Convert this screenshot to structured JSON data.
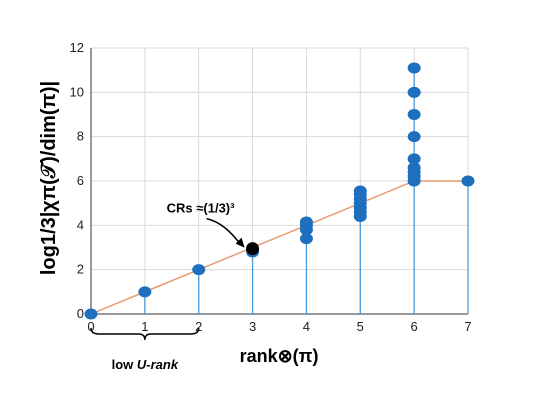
{
  "chart_data": {
    "type": "scatter",
    "xlabel": "rank⊗(π)",
    "ylabel": "log1/3|χπ(𝒯)/dim(π)|",
    "xlim": [
      0,
      7
    ],
    "ylim": [
      0,
      12
    ],
    "x_ticks": [
      "0",
      "1",
      "2",
      "3",
      "4",
      "5",
      "6",
      "7"
    ],
    "y_ticks": [
      "0",
      "2",
      "4",
      "6",
      "8",
      "10",
      "12"
    ],
    "grid": true,
    "points": [
      {
        "x": 0,
        "y": 0
      },
      {
        "x": 1,
        "y": 1
      },
      {
        "x": 2,
        "y": 2
      },
      {
        "x": 3,
        "y": 2.8
      },
      {
        "x": 4,
        "y": 3.4
      },
      {
        "x": 4,
        "y": 3.8
      },
      {
        "x": 4,
        "y": 4.0
      },
      {
        "x": 4,
        "y": 4.15
      },
      {
        "x": 5,
        "y": 4.4
      },
      {
        "x": 5,
        "y": 4.6
      },
      {
        "x": 5,
        "y": 4.8
      },
      {
        "x": 5,
        "y": 5.0
      },
      {
        "x": 5,
        "y": 5.2
      },
      {
        "x": 5,
        "y": 5.4
      },
      {
        "x": 5,
        "y": 5.55
      },
      {
        "x": 6,
        "y": 6.0
      },
      {
        "x": 6,
        "y": 6.2
      },
      {
        "x": 6,
        "y": 6.4
      },
      {
        "x": 6,
        "y": 6.6
      },
      {
        "x": 6,
        "y": 7.0
      },
      {
        "x": 6,
        "y": 8.0
      },
      {
        "x": 6,
        "y": 9.0
      },
      {
        "x": 6,
        "y": 10.0
      },
      {
        "x": 6,
        "y": 11.1
      },
      {
        "x": 7,
        "y": 6.0
      }
    ],
    "trend_line": [
      {
        "x": 0,
        "y": 0
      },
      {
        "x": 6,
        "y": 6
      },
      {
        "x": 7,
        "y": 6
      }
    ],
    "highlight": {
      "x": 3,
      "y": 2.95,
      "label": "CRs ≈(1/3)³"
    },
    "bracket": {
      "x_from": 0,
      "x_to": 2,
      "label_prefix": "low ",
      "label_italic": "U-rank"
    },
    "colors": {
      "point": "#1f6fbf",
      "stem": "#4a9ad9",
      "trend": "#e8956a",
      "grid": "#d9d9d9",
      "highlight": "#000000"
    }
  }
}
